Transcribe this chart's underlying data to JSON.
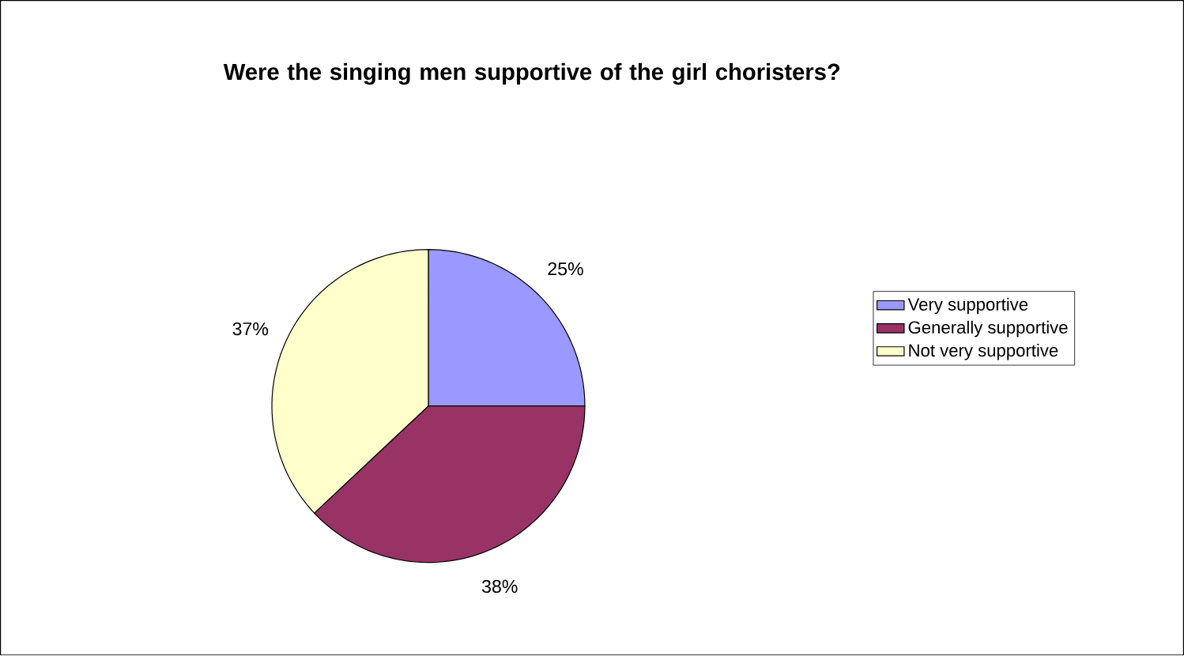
{
  "chart_data": {
    "type": "pie",
    "title": "Were the singing men supportive of the girl choristers?",
    "categories": [
      "Very supportive",
      "Generally supportive",
      "Not very supportive"
    ],
    "values": [
      25,
      38,
      37
    ],
    "colors": [
      "#9999ff",
      "#993366",
      "#ffffcc"
    ],
    "value_labels": [
      "25%",
      "38%",
      "37%"
    ],
    "legend": "right"
  }
}
